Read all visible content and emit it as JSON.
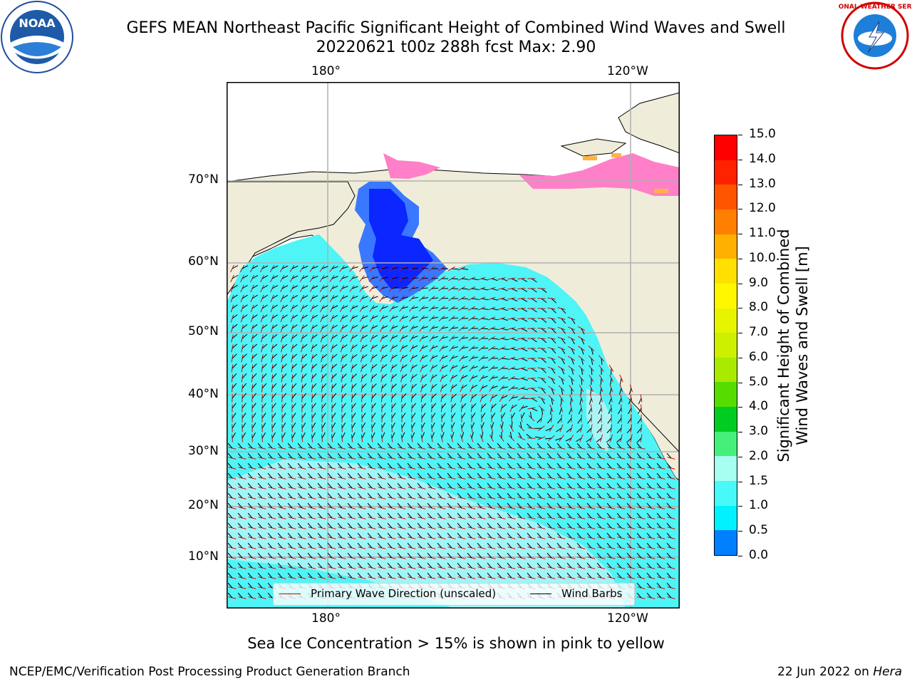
{
  "header": {
    "title_line1": "GEFS MEAN Northeast Pacific Significant Height of Combined Wind Waves and Swell",
    "title_line2": "20220621 t00z 288h fcst   Max: 2.90"
  },
  "logos": {
    "left": {
      "name": "noaa-logo",
      "text": "NOAA"
    },
    "right": {
      "name": "national-weather-service-logo",
      "text": "NATIONAL WEATHER SERVICE"
    }
  },
  "map": {
    "lon_labels": [
      "180°",
      "120°W"
    ],
    "lat_labels": [
      "70°N",
      "60°N",
      "50°N",
      "40°N",
      "30°N",
      "20°N",
      "10°N"
    ],
    "colors": {
      "land": "#efedda",
      "ocean_main": "#4ff4f7",
      "ocean_calm": "#a9f5f6",
      "ocean_low": "#3a78ff",
      "ocean_vlow": "#0b26ff",
      "ice": "#ff7fc8",
      "ice_edge": "#ffb347",
      "grid": "#b0b0b0",
      "wave_arrow": "#e00000",
      "wind_barb": "#000000"
    }
  },
  "legend": {
    "wave_label": "Primary Wave Direction (unscaled)",
    "barb_label": "Wind Barbs"
  },
  "colorbar": {
    "label_line1": "Significant Height of Combined",
    "label_line2": "Wind Waves and Swell [m]",
    "ticks": [
      "15.0",
      "14.0",
      "13.0",
      "12.0",
      "11.0",
      "10.0",
      "9.0",
      "8.0",
      "7.0",
      "6.0",
      "5.0",
      "4.0",
      "3.0",
      "2.0",
      "1.5",
      "1.0",
      "0.5",
      "0.0"
    ],
    "colors": [
      "#ff0000",
      "#ff2200",
      "#ff5500",
      "#ff7f00",
      "#ffb000",
      "#ffe000",
      "#fff700",
      "#e7f400",
      "#ccf000",
      "#a8ea00",
      "#55dd00",
      "#00cc22",
      "#45f07a",
      "#a6fff0",
      "#47f9f9",
      "#00f2ff",
      "#0080ff",
      "#0000ff"
    ]
  },
  "caption": "Sea Ice Concentration > 15% is shown in pink to yellow",
  "footer": {
    "left": "NCEP/EMC/Verification Post Processing Product Generation Branch",
    "right_prefix": "22 Jun 2022 on ",
    "right_machine": "Hera"
  }
}
